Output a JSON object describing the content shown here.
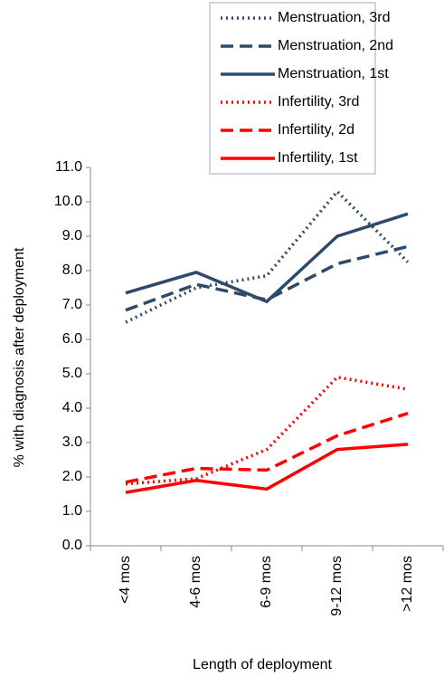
{
  "chart_data": {
    "type": "line",
    "x_label": "Length of deployment",
    "y_label": "% with diagnosis after deployment",
    "categories": [
      "<4 mos",
      "4-6 mos",
      "6-9 mos",
      "9-12 mos",
      ">12 mos"
    ],
    "ylim": [
      0,
      11
    ],
    "yticks": [
      {
        "value": 0,
        "label": "0.0"
      },
      {
        "value": 1,
        "label": "1.0"
      },
      {
        "value": 2,
        "label": "2.0"
      },
      {
        "value": 3,
        "label": "3.0"
      },
      {
        "value": 4,
        "label": "4.0"
      },
      {
        "value": 5,
        "label": "5.0"
      },
      {
        "value": 6,
        "label": "6.0"
      },
      {
        "value": 7,
        "label": "7.0"
      },
      {
        "value": 8,
        "label": "8.0"
      },
      {
        "value": 9,
        "label": "9.0"
      },
      {
        "value": 10,
        "label": "10.0"
      },
      {
        "value": 11,
        "label": "11.0"
      }
    ],
    "series": [
      {
        "name": "Menstruation, 3rd",
        "color": "#2e4a6b",
        "dash": "dot",
        "values": [
          6.5,
          7.5,
          7.85,
          10.3,
          8.25
        ]
      },
      {
        "name": "Menstruation, 2nd",
        "color": "#2e4a6b",
        "dash": "dash",
        "values": [
          6.85,
          7.6,
          7.15,
          8.2,
          8.7
        ]
      },
      {
        "name": "Menstruation, 1st",
        "color": "#2e4a6b",
        "dash": "solid",
        "values": [
          7.35,
          7.95,
          7.1,
          9.0,
          9.65
        ]
      },
      {
        "name": "Infertility, 3rd",
        "color": "#ff0000",
        "dash": "dot",
        "values": [
          1.8,
          1.95,
          2.8,
          4.9,
          4.55
        ]
      },
      {
        "name": "Infertility, 2d",
        "color": "#ff0000",
        "dash": "dash",
        "values": [
          1.85,
          2.25,
          2.2,
          3.2,
          3.85
        ]
      },
      {
        "name": "Infertility, 1st",
        "color": "#ff0000",
        "dash": "solid",
        "values": [
          1.55,
          1.9,
          1.65,
          2.8,
          2.95
        ]
      }
    ],
    "legend_position": "top"
  }
}
